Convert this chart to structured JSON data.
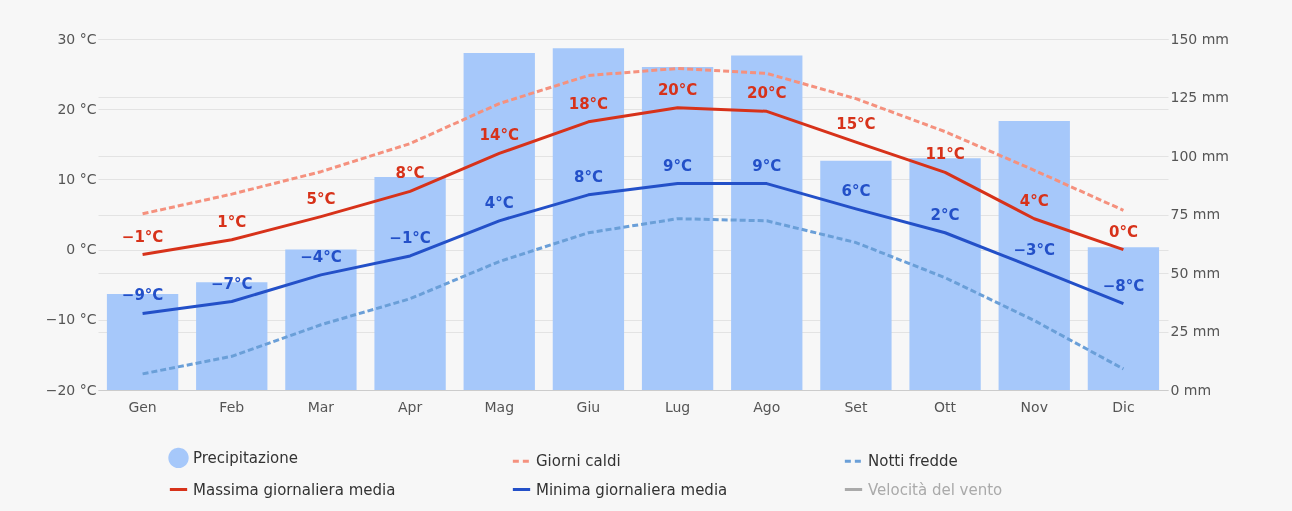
{
  "chart_data": {
    "type": "line",
    "categories": [
      "Gen",
      "Feb",
      "Mar",
      "Apr",
      "Mag",
      "Giu",
      "Lug",
      "Ago",
      "Set",
      "Ott",
      "Nov",
      "Dic"
    ],
    "ylim": [
      -20,
      30
    ],
    "yticks": [
      {
        "value": -20,
        "label": "−20 °C"
      },
      {
        "value": -10,
        "label": "−10 °C"
      },
      {
        "value": 0,
        "label": "0 °C"
      },
      {
        "value": 10,
        "label": "10 °C"
      },
      {
        "value": 20,
        "label": "20 °C"
      },
      {
        "value": 30,
        "label": "30 °C"
      }
    ],
    "y2lim": [
      0,
      150
    ],
    "y2ticks": [
      {
        "value": 0,
        "label": "0 mm"
      },
      {
        "value": 25,
        "label": "25 mm"
      },
      {
        "value": 50,
        "label": "50 mm"
      },
      {
        "value": 75,
        "label": "75 mm"
      },
      {
        "value": 100,
        "label": "100 mm"
      },
      {
        "value": 125,
        "label": "125 mm"
      },
      {
        "value": 150,
        "label": "150 mm"
      }
    ],
    "grid": "y",
    "legend": "bottom",
    "marker": "none",
    "series": [
      {
        "name": "Precipitazione",
        "type": "bar",
        "axis": "y2",
        "color": "#a6c8fa",
        "values": [
          41,
          46,
          60,
          91,
          144,
          146,
          138,
          143,
          98,
          99,
          115,
          61
        ]
      },
      {
        "name": "Giorni caldi",
        "line_style": "dashed",
        "color": "#f5917e",
        "values": [
          5.1,
          7.9,
          11.1,
          15.1,
          20.8,
          24.8,
          25.8,
          25.1,
          21.5,
          16.8,
          11.3,
          5.6
        ]
      },
      {
        "name": "Notti fredde",
        "line_style": "dashed",
        "color": "#6a9fd8",
        "values": [
          -17.7,
          -15.2,
          -10.7,
          -7,
          -1.7,
          2.4,
          4.4,
          4.1,
          1,
          -4,
          -10.1,
          -17
        ]
      },
      {
        "name": "Massima giornaliera media",
        "line_style": "solid",
        "color": "#d7321a",
        "values": [
          -0.7,
          1.4,
          4.7,
          8.3,
          13.7,
          18.2,
          20.2,
          19.7,
          15.3,
          11,
          4.4,
          0
        ],
        "value_labels": [
          "−1°C",
          "1°C",
          "5°C",
          "8°C",
          "14°C",
          "18°C",
          "20°C",
          "20°C",
          "15°C",
          "11°C",
          "4°C",
          "0°C"
        ]
      },
      {
        "name": "Minima giornaliera media",
        "line_style": "solid",
        "color": "#2350c8",
        "values": [
          -9.1,
          -7.4,
          -3.6,
          -0.9,
          4.1,
          7.8,
          9.4,
          9.4,
          5.8,
          2.4,
          -2.6,
          -7.7
        ],
        "value_labels": [
          "−9°C",
          "−7°C",
          "−4°C",
          "−1°C",
          "4°C",
          "8°C",
          "9°C",
          "9°C",
          "6°C",
          "2°C",
          "−3°C",
          "−8°C"
        ]
      },
      {
        "name": "Velocità del vento",
        "line_style": "solid",
        "color": "#aaaaaa",
        "values": [
          null,
          null,
          null,
          null,
          null,
          null,
          null,
          null,
          null,
          null,
          null,
          null
        ]
      }
    ]
  }
}
